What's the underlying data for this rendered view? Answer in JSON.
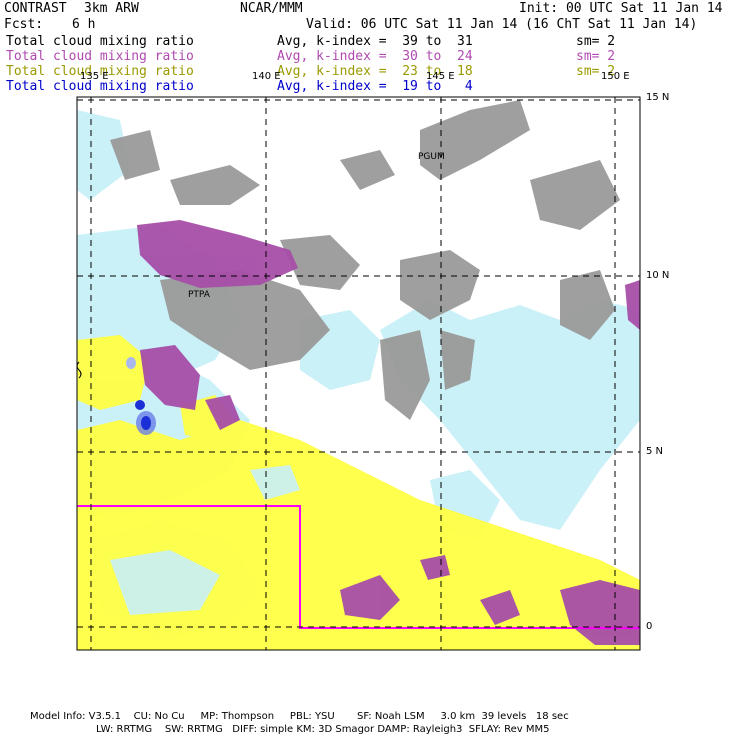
{
  "header": {
    "model": "CONTRAST",
    "resolution": "3km ARW",
    "org": "NCAR/MMM",
    "init": "Init: 00 UTC Sat 11 Jan 14",
    "fcst_label": "Fcst:",
    "fcst_value": "6 h",
    "valid": "Valid: 06 UTC Sat 11 Jan 14 (16 ChT Sat 11 Jan 14)"
  },
  "legend": [
    {
      "field": "Total cloud mixing ratio",
      "kindex": "Avg, k-index =  39 to  31",
      "sm": "sm= 2",
      "color": "#000000"
    },
    {
      "field": "Total cloud mixing ratio",
      "kindex": "Avg, k-index =  30 to  24",
      "sm": "sm= 2",
      "color": "#b04ab0"
    },
    {
      "field": "Total cloud mixing ratio",
      "kindex": "Avg, k-index =  23 to  18",
      "sm": "sm= 2",
      "color": "#9a9a00"
    },
    {
      "field": "Total cloud mixing ratio",
      "kindex": "Avg, k-index =  19 to   4",
      "sm": "",
      "color": "#0000cc"
    }
  ],
  "map": {
    "lon_labels": [
      "135 E",
      "140 E",
      "145 E",
      "150 E"
    ],
    "lat_labels": [
      "15 N",
      "10 N",
      "5 N",
      "0"
    ],
    "stations": [
      "PGUM",
      "PTPA"
    ],
    "colors": {
      "high_cloud": "#9a9a9a",
      "mid_cloud": "#a64ea8",
      "low_cloud": "#ffff44",
      "shallow_cloud": "#c8f0f8",
      "deep_core": "#1a2fd6",
      "boundary": "#ff00ff"
    }
  },
  "footer": {
    "line1": "Model Info: V3.5.1    CU: No Cu     MP: Thompson     PBL: YSU       SF: Noah LSM     3.0 km  39 levels   18 sec",
    "line2": "LW: RRTMG    SW: RRTMG   DIFF: simple KM: 3D Smagor DAMP: Rayleigh3  SFLAY: Rev MM5"
  }
}
